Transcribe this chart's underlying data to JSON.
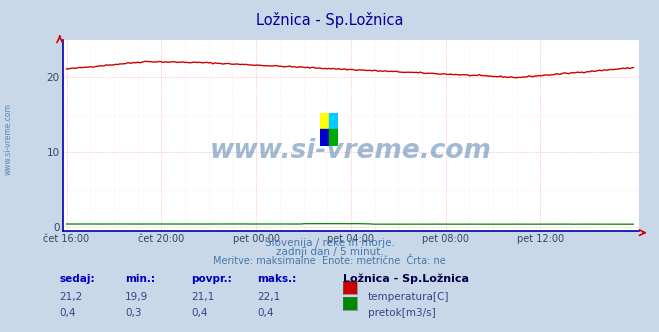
{
  "title": "Ložnica - Sp.Ložnica",
  "title_color": "#000099",
  "bg_color": "#c8d8e8",
  "plot_bg_color": "#ffffff",
  "grid_color_major": "#ffaaaa",
  "grid_color_minor": "#ffdddd",
  "x_tick_labels": [
    "čet 16:00",
    "čet 20:00",
    "pet 00:00",
    "pet 04:00",
    "pet 08:00",
    "pet 12:00"
  ],
  "x_tick_positions": [
    0,
    48,
    96,
    144,
    192,
    240
  ],
  "y_ticks": [
    0,
    10,
    20
  ],
  "ylim": [
    -0.5,
    25
  ],
  "xlim": [
    -2,
    290
  ],
  "temp_color": "#cc0000",
  "flow_color": "#008800",
  "axis_color": "#0000aa",
  "watermark_color": "#4477aa",
  "sidebar_text": "www.si-vreme.com",
  "subtitle_line1": "Slovenija / reke in morje.",
  "subtitle_line2": "zadnji dan / 5 minut.",
  "subtitle_line3": "Meritve: maksimalne  Enote: metrične  Črta: ne",
  "footer_headers": [
    "sedaj:",
    "min.:",
    "povpr.:",
    "maks.:"
  ],
  "footer_row1": [
    "21,2",
    "19,9",
    "21,1",
    "22,1"
  ],
  "footer_row2": [
    "0,4",
    "0,3",
    "0,4",
    "0,4"
  ],
  "footer_station": "Ložnica - Sp.Ložnica",
  "footer_label1": "temperatura[C]",
  "footer_label2": "pretok[m3/s]",
  "logo_colors": [
    "#ffff00",
    "#00ccff",
    "#0000cc",
    "#00aa00"
  ]
}
